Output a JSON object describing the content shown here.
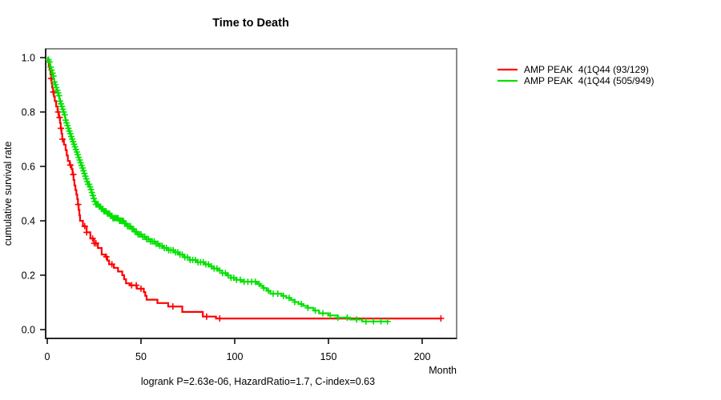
{
  "title": "Time to Death",
  "footer": "logrank P=2.63e-06, HazardRatio=1.7, C-index=0.63",
  "axes": {
    "x_label": "Month",
    "y_label": "cumulative survival rate",
    "x_ticks": [
      0,
      50,
      100,
      150,
      200
    ],
    "y_ticks": [
      "0.0",
      "0.2",
      "0.4",
      "0.6",
      "0.8",
      "1.0"
    ]
  },
  "legend": {
    "items": [
      {
        "label": "AMP PEAK  4(1Q44 (93/129)",
        "color": "#ff0000"
      },
      {
        "label": "AMP PEAK  4(1Q44 (505/949)",
        "color": "#00e100"
      }
    ]
  },
  "chart_data": {
    "type": "line",
    "subtype": "kaplan-meier-step",
    "title": "Time to Death",
    "xlabel": "Month",
    "ylabel": "cumulative survival rate",
    "xlim": [
      0,
      219
    ],
    "ylim": [
      0,
      1.0
    ],
    "grid": false,
    "legend_position": "right-outside",
    "annotation": "logrank P=2.63e-06, HazardRatio=1.7, C-index=0.63",
    "series": [
      {
        "name": "AMP PEAK  4(1Q44 (93/129)",
        "color": "#ff0000",
        "max_step_drop": 0.024,
        "end_month": 210,
        "points": [
          [
            0,
            1.0
          ],
          [
            0.8,
            0.97
          ],
          [
            1.7,
            0.94
          ],
          [
            2.6,
            0.89
          ],
          [
            4,
            0.84
          ],
          [
            5.5,
            0.8
          ],
          [
            6.8,
            0.76
          ],
          [
            8,
            0.7
          ],
          [
            9.8,
            0.66
          ],
          [
            11,
            0.62
          ],
          [
            13,
            0.59
          ],
          [
            14.5,
            0.53
          ],
          [
            16,
            0.48
          ],
          [
            17.5,
            0.4
          ],
          [
            19,
            0.38
          ],
          [
            23,
            0.335
          ],
          [
            27,
            0.3
          ],
          [
            29,
            0.276
          ],
          [
            31,
            0.268
          ],
          [
            33,
            0.24
          ],
          [
            35.5,
            0.227
          ],
          [
            40,
            0.2
          ],
          [
            42,
            0.17
          ],
          [
            44,
            0.163
          ],
          [
            51.5,
            0.138
          ],
          [
            53,
            0.11
          ],
          [
            64.5,
            0.085
          ],
          [
            72,
            0.065
          ],
          [
            83,
            0.048
          ],
          [
            90,
            0.041
          ]
        ],
        "censor_months": [
          2,
          3.2,
          5.8,
          6.6,
          7.3,
          8.1,
          12.3,
          13.9,
          16.5,
          20,
          21,
          24.2,
          25.1,
          26,
          31.5,
          34.5,
          45,
          47.5,
          50,
          67,
          85,
          92,
          210
        ]
      },
      {
        "name": "AMP PEAK  4(1Q44 (505/949)",
        "color": "#00e100",
        "max_step_drop": 0.011,
        "end_month": 182,
        "points": [
          [
            0,
            1.0
          ],
          [
            1.3,
            0.976
          ],
          [
            3.8,
            0.91
          ],
          [
            6.8,
            0.84
          ],
          [
            9.8,
            0.77
          ],
          [
            12.4,
            0.71
          ],
          [
            15.4,
            0.653
          ],
          [
            18.4,
            0.594
          ],
          [
            21,
            0.544
          ],
          [
            23,
            0.515
          ],
          [
            26,
            0.46
          ],
          [
            30,
            0.435
          ],
          [
            35,
            0.41
          ],
          [
            41,
            0.39
          ],
          [
            48,
            0.35
          ],
          [
            55,
            0.324
          ],
          [
            62,
            0.3
          ],
          [
            70,
            0.276
          ],
          [
            76,
            0.256
          ],
          [
            84,
            0.24
          ],
          [
            91,
            0.217
          ],
          [
            98,
            0.19
          ],
          [
            104,
            0.176
          ],
          [
            112,
            0.168
          ],
          [
            115,
            0.153
          ],
          [
            119,
            0.132
          ],
          [
            125,
            0.124
          ],
          [
            130,
            0.109
          ],
          [
            134,
            0.094
          ],
          [
            139,
            0.08
          ],
          [
            145,
            0.06
          ],
          [
            155,
            0.044
          ],
          [
            168,
            0.03
          ]
        ],
        "censor_months": [
          0.7,
          1.2,
          1.8,
          2.3,
          2.8,
          3.3,
          3.8,
          4.3,
          4.8,
          5.3,
          5.8,
          6.3,
          6.8,
          7.3,
          7.8,
          8.3,
          8.8,
          9.3,
          9.8,
          10.3,
          10.8,
          11.3,
          11.8,
          12.3,
          12.8,
          13.3,
          13.8,
          14.3,
          14.8,
          15.3,
          15.8,
          16.3,
          16.8,
          17.3,
          17.8,
          18.3,
          18.8,
          19.3,
          19.8,
          20.3,
          20.8,
          21.3,
          21.8,
          22.3,
          22.8,
          23.3,
          23.8,
          24.3,
          24.8,
          25.4,
          26,
          26.6,
          27.2,
          27.8,
          28.4,
          29,
          29.6,
          30.2,
          30.8,
          31.4,
          32,
          32.6,
          33.2,
          33.8,
          34.4,
          35,
          35.7,
          36.4,
          37.1,
          37.8,
          38.5,
          39.2,
          39.9,
          40.6,
          41.3,
          42,
          42.8,
          43.6,
          44.4,
          45.2,
          46,
          46.8,
          47.6,
          48.4,
          49.2,
          50,
          51,
          52,
          53,
          54,
          55,
          56,
          57,
          58,
          59,
          60,
          61.2,
          62.4,
          63.6,
          64.8,
          66,
          67.2,
          68.4,
          69.6,
          70.8,
          72,
          73.4,
          74.8,
          76.2,
          77.6,
          79,
          80.4,
          81.8,
          83.2,
          84.6,
          86,
          87.5,
          89,
          90.5,
          92,
          93.5,
          95,
          96.5,
          98,
          99.5,
          101,
          103,
          105,
          107,
          109,
          111,
          113,
          115.5,
          118,
          120.5,
          123,
          126,
          129,
          132,
          135.5,
          139,
          143,
          147,
          151,
          155,
          160,
          165,
          170,
          174,
          178,
          181.5
        ]
      }
    ]
  }
}
